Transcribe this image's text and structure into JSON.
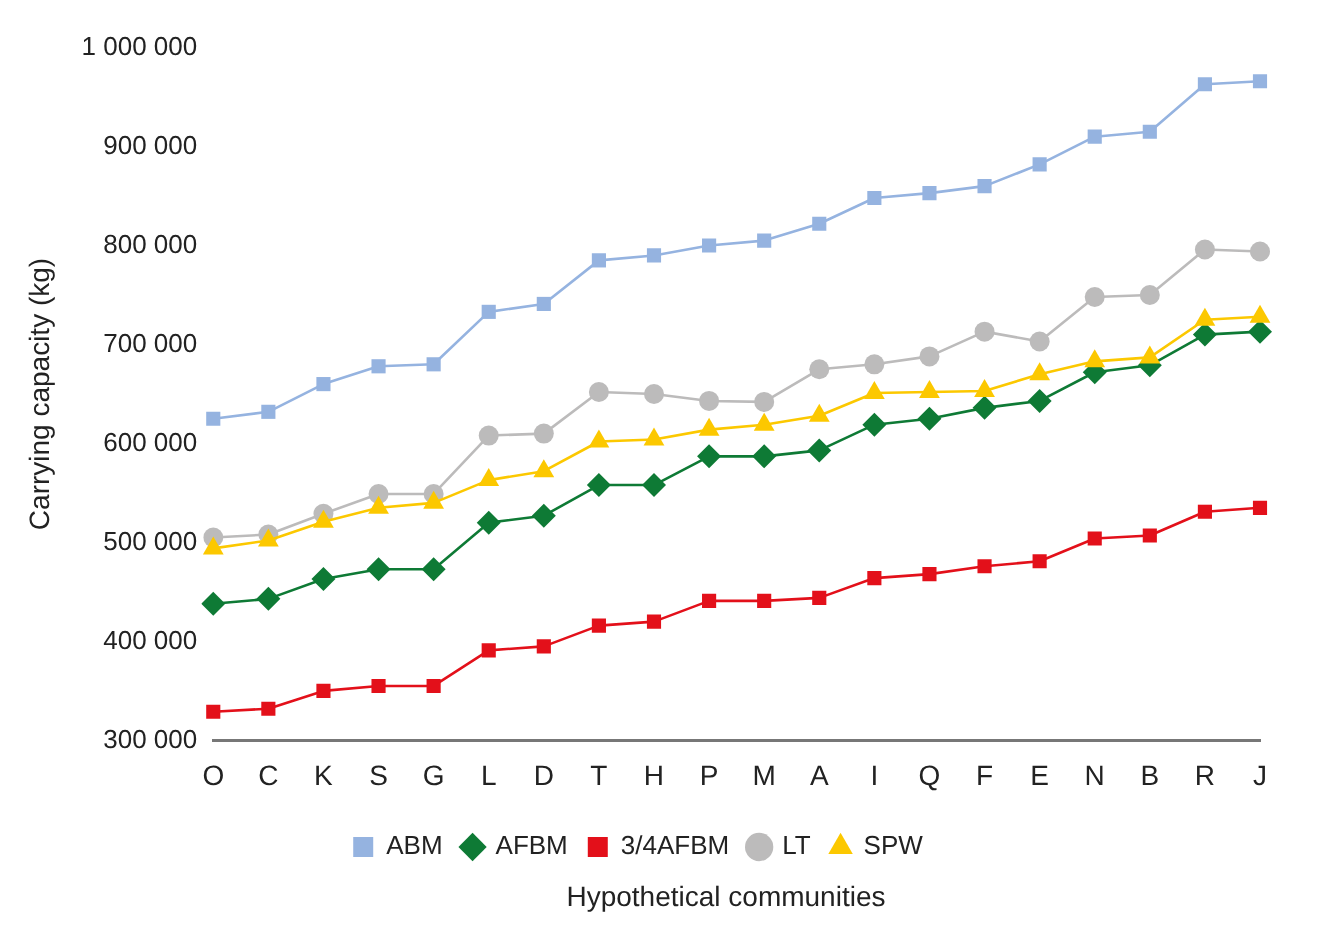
{
  "chart_data": {
    "type": "line",
    "xlabel": "Hypothetical communities",
    "ylabel": "Carrying capacity (kg)",
    "categories": [
      "O",
      "C",
      "K",
      "S",
      "G",
      "L",
      "D",
      "T",
      "H",
      "P",
      "M",
      "A",
      "I",
      "Q",
      "F",
      "E",
      "N",
      "B",
      "R",
      "J"
    ],
    "ylim": [
      300000,
      1000000
    ],
    "yticks": [
      {
        "value": 300000,
        "label": "300 000"
      },
      {
        "value": 400000,
        "label": "400 000"
      },
      {
        "value": 500000,
        "label": "500 000"
      },
      {
        "value": 600000,
        "label": "600 000"
      },
      {
        "value": 700000,
        "label": "700 000"
      },
      {
        "value": 800000,
        "label": "800 000"
      },
      {
        "value": 900000,
        "label": "900 000"
      },
      {
        "value": 1000000,
        "label": "1 000 000"
      }
    ],
    "grid": false,
    "legend": "bottom",
    "series": [
      {
        "name": "ABM",
        "color": "#95b3e0",
        "marker": "square",
        "values": [
          625000,
          632000,
          660000,
          678000,
          680000,
          733000,
          741000,
          785000,
          790000,
          800000,
          805000,
          822000,
          848000,
          853000,
          860000,
          882000,
          910000,
          915000,
          963000,
          966000
        ]
      },
      {
        "name": "AFBM",
        "color": "#0e7a35",
        "marker": "diamond",
        "values": [
          438000,
          443000,
          463000,
          473000,
          473000,
          520000,
          527000,
          558000,
          558000,
          587000,
          587000,
          593000,
          619000,
          625000,
          636000,
          643000,
          672000,
          679000,
          710000,
          713000
        ]
      },
      {
        "name": "3/4AFBM",
        "color": "#e3101a",
        "marker": "square",
        "values": [
          329000,
          332000,
          350000,
          355000,
          355000,
          391000,
          395000,
          416000,
          420000,
          441000,
          441000,
          444000,
          464000,
          468000,
          476000,
          481000,
          504000,
          507000,
          531000,
          535000
        ]
      },
      {
        "name": "LT",
        "color": "#bcbbbb",
        "marker": "circle",
        "values": [
          505000,
          508000,
          529000,
          549000,
          549000,
          608000,
          610000,
          652000,
          650000,
          643000,
          642000,
          675000,
          680000,
          688000,
          713000,
          703000,
          748000,
          750000,
          796000,
          794000
        ]
      },
      {
        "name": "SPW",
        "color": "#fcc800",
        "marker": "triangle",
        "values": [
          494000,
          502000,
          521000,
          535000,
          540000,
          563000,
          572000,
          602000,
          604000,
          614000,
          619000,
          628000,
          651000,
          652000,
          653000,
          670000,
          683000,
          687000,
          725000,
          728000
        ]
      }
    ]
  }
}
